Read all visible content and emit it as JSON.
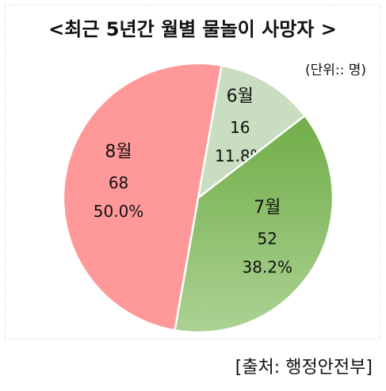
{
  "chart_data": {
    "type": "pie",
    "title": "<최근 5년간 월별 물놀이 사망자 >",
    "subtitle": "(단위:: 명)",
    "source": "[출처: 행정안전부]",
    "categories": [
      "6월",
      "7월",
      "8월"
    ],
    "values": [
      16,
      52,
      68
    ],
    "percent_labels": [
      "11.8%",
      "38.2%",
      "50.0%"
    ],
    "colors": [
      "#c9ddc0",
      "#8dc06c",
      "#ff9999"
    ]
  }
}
